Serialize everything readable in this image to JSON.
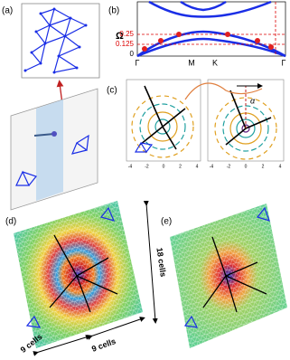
{
  "panels": {
    "a": {
      "label": "(a)"
    },
    "b": {
      "label": "(b)",
      "y_axis": "Ω",
      "y_ticks": [
        "0.25",
        "0.125",
        "0"
      ],
      "x_ticks": [
        "Γ",
        "M",
        "K",
        "Γ"
      ]
    },
    "c": {
      "label": "(c)",
      "angle": "α",
      "left_ticks": [
        "-4",
        "-2",
        "0",
        "2",
        "4"
      ],
      "right_ticks": [
        "-4",
        "-2",
        "0",
        "2",
        "4"
      ]
    },
    "d": {
      "label": "(d)",
      "size_labels": [
        "18 cells",
        "9 cells",
        "9 cells"
      ]
    },
    "e": {
      "label": "(e)"
    }
  }
}
